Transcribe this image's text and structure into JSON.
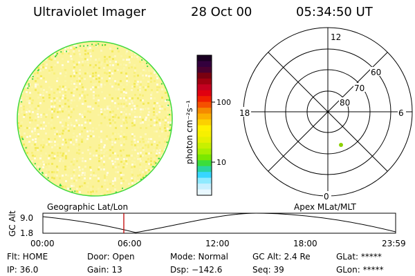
{
  "header": {
    "title": "Ultraviolet Imager",
    "date": "28 Oct 00",
    "time": "05:34:50 UT"
  },
  "colorbar": {
    "unit_label": "photon cm⁻²s⁻¹",
    "ticks": [
      "100",
      "10"
    ],
    "colors": [
      "#1a0022",
      "#33003d",
      "#4a0030",
      "#7a0010",
      "#a00010",
      "#c40020",
      "#e00010",
      "#f02000",
      "#f55000",
      "#f58a00",
      "#fbb000",
      "#fcd000",
      "#fff100",
      "#f7f000",
      "#e5f000",
      "#c8f000",
      "#a7ef00",
      "#7ae800",
      "#3bdd3b",
      "#2ad4a0",
      "#38d6ff",
      "#8feaff",
      "#c8f0ff",
      "#e9f8ff"
    ]
  },
  "polar": {
    "ring_labels": [
      "80",
      "70",
      "60"
    ],
    "clock_labels": {
      "top": "12",
      "left": "18",
      "right": "6",
      "bottom": "0"
    },
    "point_color": "#8cd200"
  },
  "timeline": {
    "left_label": "Geographic Lat/Lon",
    "right_label": "Apex MLat/MLT",
    "yaxis_label": "GC Alt",
    "ymax": "9.0",
    "ymin": "1.8",
    "xticks": [
      "00:00",
      "06:00",
      "12:00",
      "18:00",
      "23:59"
    ],
    "marker_color": "#c00000"
  },
  "status": {
    "col1": [
      "Flt: HOME",
      "IP: 36.0"
    ],
    "col2": [
      "Door: Open",
      "Gain: 13"
    ],
    "col3": [
      "Mode: Normal",
      "Dsp: −142.6"
    ],
    "col4": [
      "GC Alt: 2.4 Re",
      "Seq: 39"
    ],
    "col5": [
      "GLat: *****",
      "GLon: *****"
    ]
  },
  "disk": {
    "fill_colors": [
      "#fbf5a6",
      "#f8ef7a",
      "#fdf7c0",
      "#f3e95a",
      "#fffbe0"
    ],
    "edge_color": "#3fd93f"
  }
}
